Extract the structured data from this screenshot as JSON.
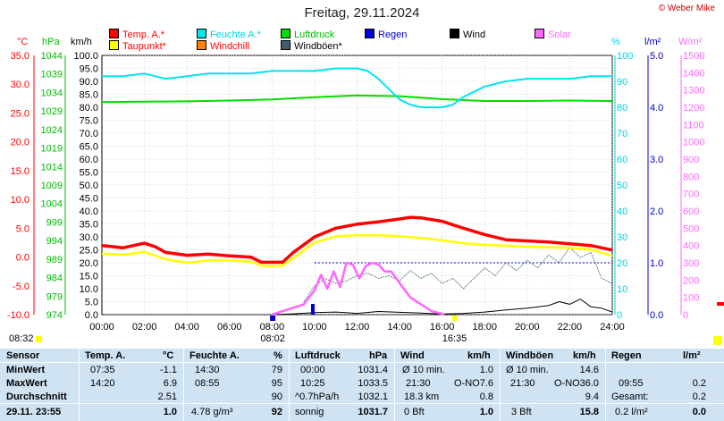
{
  "header": {
    "title": "Freitag, 29.11.2024",
    "copyright": "© Weber Mike"
  },
  "legend": [
    {
      "label": "Temp. A.*",
      "color": "#ff0000"
    },
    {
      "label": "Feuchte A.*",
      "color": "#00e5ee"
    },
    {
      "label": "Luftdruck",
      "color": "#00dd00"
    },
    {
      "label": "Regen",
      "color": "#0000dd"
    },
    {
      "label": "Wind",
      "color": "#000000"
    },
    {
      "label": "Solar",
      "color": "#ff66ff"
    },
    {
      "label": "Taupunkt*",
      "color": "#ffff00"
    },
    {
      "label": "Windchill",
      "color": "#ff8000"
    },
    {
      "label": "Windböen*",
      "color": "#406070"
    }
  ],
  "axis_units": {
    "temp": "°C",
    "hpa": "hPa",
    "kmh": "km/h",
    "hum": "%",
    "rain": "l/m²",
    "solar": "W/m²"
  },
  "chart_data": {
    "type": "line",
    "title": "Freitag, 29.11.2024",
    "x_ticks": [
      "00:00",
      "02:00",
      "04:00",
      "06:00",
      "08:00",
      "10:00",
      "12:00",
      "14:00",
      "16:00",
      "18:00",
      "20:00",
      "22:00",
      "24:00"
    ],
    "axes": {
      "temp_c": {
        "range": [
          -10,
          35
        ],
        "ticks": [
          "35.0",
          "30.0",
          "25.0",
          "20.0",
          "15.0",
          "10.0",
          "5.0",
          "0.0",
          "-5.0",
          "-10.0"
        ]
      },
      "pressure_hpa": {
        "range": [
          974,
          1044
        ],
        "ticks": [
          "1044",
          "1039",
          "1034",
          "1029",
          "1024",
          "1019",
          "1014",
          "1009",
          "1004",
          "999",
          "994",
          "989",
          "984",
          "979",
          "974"
        ]
      },
      "wind_kmh": {
        "range": [
          0,
          100
        ],
        "ticks": [
          "100.0",
          "95.0",
          "90.0",
          "85.0",
          "80.0",
          "75.0",
          "70.0",
          "65.0",
          "60.0",
          "55.0",
          "50.0",
          "45.0",
          "40.0",
          "35.0",
          "30.0",
          "25.0",
          "20.0",
          "15.0",
          "10.0",
          "5.0",
          "0.0"
        ]
      },
      "humidity_pct": {
        "range": [
          0,
          100
        ],
        "ticks": [
          "100",
          "90",
          "80",
          "70",
          "60",
          "50",
          "40",
          "30",
          "20",
          "10",
          "0"
        ]
      },
      "rain_lm2": {
        "range": [
          0,
          5
        ],
        "ticks": [
          "5.0",
          "4.0",
          "3.0",
          "2.0",
          "1.0",
          "0.0"
        ]
      },
      "solar_wm2": {
        "range": [
          0,
          1500
        ],
        "ticks": [
          "1500",
          "1400",
          "1300",
          "1200",
          "1100",
          "1000",
          "900",
          "800",
          "700",
          "600",
          "500",
          "400",
          "300",
          "200",
          "100",
          "0"
        ]
      }
    },
    "series": [
      {
        "name": "Temp. A.*",
        "axis": "temp_c",
        "hours": [
          0,
          1,
          2,
          2.5,
          3,
          4,
          5,
          6,
          7,
          7.5,
          8,
          8.5,
          9,
          10,
          11,
          12,
          13,
          14,
          14.5,
          15,
          16,
          17,
          18,
          19,
          20,
          21,
          22,
          23,
          24
        ],
        "values": [
          2.0,
          1.6,
          2.4,
          1.8,
          0.8,
          0.3,
          0.5,
          0.2,
          0.0,
          -0.9,
          -0.9,
          -0.9,
          0.8,
          3.5,
          5.0,
          5.7,
          6.1,
          6.6,
          6.9,
          6.8,
          6.2,
          5.0,
          3.9,
          3.0,
          2.8,
          2.6,
          2.3,
          2.0,
          1.2
        ]
      },
      {
        "name": "Taupunkt*",
        "axis": "temp_c",
        "hours": [
          0,
          1,
          2,
          3,
          4,
          5,
          6,
          7,
          7.5,
          8,
          8.5,
          9,
          10,
          11,
          12,
          13,
          14,
          15,
          16,
          17,
          18,
          19,
          20,
          21,
          22,
          23,
          24
        ],
        "values": [
          0.6,
          0.4,
          0.9,
          -0.4,
          -1.0,
          -0.6,
          -0.6,
          -0.8,
          -1.5,
          -1.5,
          -1.5,
          -0.2,
          2.5,
          3.6,
          3.8,
          3.8,
          3.6,
          3.3,
          2.9,
          2.4,
          2.1,
          2.0,
          1.8,
          1.7,
          1.6,
          1.3,
          0.2
        ]
      },
      {
        "name": "Feuchte A.*",
        "axis": "humidity_pct",
        "hours": [
          0,
          1,
          2,
          2.5,
          3,
          4,
          5,
          6,
          7,
          8,
          8.5,
          9,
          10,
          11,
          12,
          12.5,
          13,
          13.5,
          14,
          14.5,
          15,
          15.5,
          16,
          16.5,
          17,
          18,
          19,
          20,
          21,
          22,
          23,
          24
        ],
        "values": [
          92,
          92,
          93,
          92,
          91,
          92,
          93,
          93,
          93,
          94,
          94,
          94,
          94,
          95,
          95,
          94,
          91,
          87,
          83,
          81,
          80,
          80,
          80,
          81,
          84,
          88,
          90,
          91,
          91,
          91,
          92,
          92
        ]
      },
      {
        "name": "Luftdruck",
        "axis": "pressure_hpa",
        "hours": [
          0,
          2,
          4,
          6,
          8,
          10,
          12,
          14,
          16,
          18,
          20,
          22,
          24
        ],
        "values": [
          1031.4,
          1031.5,
          1031.6,
          1031.8,
          1032.1,
          1032.7,
          1033.2,
          1033.0,
          1032.2,
          1031.7,
          1031.7,
          1031.8,
          1031.7
        ]
      },
      {
        "name": "Solar",
        "axis": "solar_wm2",
        "hours": [
          8,
          8.5,
          9,
          9.5,
          10,
          10.3,
          10.6,
          10.9,
          11.2,
          11.5,
          11.8,
          12.1,
          12.4,
          12.7,
          13,
          13.3,
          13.6,
          13.9,
          14.2,
          14.5,
          15,
          15.5,
          16,
          16.1
        ],
        "values": [
          0,
          20,
          40,
          60,
          140,
          230,
          150,
          250,
          160,
          300,
          290,
          210,
          280,
          300,
          290,
          250,
          250,
          200,
          150,
          100,
          60,
          20,
          5,
          0
        ]
      },
      {
        "name": "Windböen*",
        "axis": "wind_kmh",
        "hours": [
          9.5,
          10,
          10.5,
          11,
          11.5,
          12,
          12.5,
          13,
          13.5,
          14,
          14.5,
          15,
          15.5,
          16,
          16.5,
          17,
          17.5,
          18,
          18.5,
          19,
          19.5,
          20,
          20.5,
          21,
          21.5,
          22,
          22.5,
          23,
          23.5,
          24
        ],
        "values": [
          5,
          11,
          14,
          12,
          13,
          15,
          16,
          14,
          15,
          13,
          17,
          14,
          16,
          12,
          14,
          10,
          14,
          18,
          15,
          20,
          17,
          21,
          18,
          23,
          20,
          26,
          22,
          24,
          14,
          12
        ]
      },
      {
        "name": "Wind",
        "axis": "wind_kmh",
        "hours": [
          8,
          9,
          10,
          11,
          12,
          13,
          14,
          15,
          16,
          17,
          18,
          19,
          20,
          21,
          21.5,
          22,
          22.5,
          23,
          23.5,
          24
        ],
        "values": [
          0,
          0.3,
          0.8,
          1.0,
          0.5,
          1.2,
          0.9,
          0.6,
          0.2,
          0.5,
          1.0,
          1.8,
          2.5,
          3.5,
          5.0,
          4.0,
          6.0,
          3.0,
          2.5,
          1.0
        ]
      }
    ],
    "markers": [
      {
        "time": "08:02",
        "label": "08:02"
      },
      {
        "time": "16:35",
        "label": "16:35"
      }
    ],
    "left_label": "08:32",
    "rain_total_lm2": 0.2
  },
  "stats_table": {
    "headers": {
      "sensor": "Sensor",
      "temp": "Temp. A.",
      "temp_unit": "°C",
      "hum": "Feuchte A.",
      "hum_unit": "%",
      "press": "Luftdruck",
      "press_unit": "hPa",
      "wind": "Wind",
      "wind_unit": "km/h",
      "gust": "Windböen",
      "gust_unit": "km/h",
      "rain": "Regen",
      "rain_unit": "l/m²"
    },
    "rows": {
      "min": {
        "label": "MinWert",
        "temp_time": "07:35",
        "temp_val": "-1.1",
        "hum_time": "14:30",
        "hum_val": "79",
        "press_time": "00:00",
        "press_val": "1031.4",
        "wind_time": "Ø 10 min.",
        "wind_val": "1.0",
        "gust_time": "Ø 10 min.",
        "gust_val": "14.6",
        "rain_time": "",
        "rain_val": ""
      },
      "max": {
        "label": "MaxWert",
        "temp_time": "14:20",
        "temp_val": "6.9",
        "hum_time": "08:55",
        "hum_val": "95",
        "press_time": "10:25",
        "press_val": "1033.5",
        "wind_time": "21:30",
        "wind_dir": "O-NO",
        "wind_val": "7.6",
        "gust_time": "21:30",
        "gust_dir": "O-NO",
        "gust_val": "36.0",
        "rain_time": "09:55",
        "rain_val": "0.2"
      },
      "avg": {
        "label": "Durchschnitt",
        "temp_val": "2.51",
        "hum_val": "90",
        "press_time": "^0.7hPa/h",
        "press_val": "1032.1",
        "wind_time": "18.3 km",
        "wind_val": "0.8",
        "gust_val": "9.4",
        "rain_time": "Gesamt:",
        "rain_val": "0.2"
      },
      "current": {
        "label": "29.11. 23:55",
        "temp_val": "1.0",
        "hum_time": "4.78 g/m³",
        "hum_val": "92",
        "press_time": "sonnig",
        "press_val": "1031.7",
        "wind_time": "0 Bft",
        "wind_val": "1.0",
        "gust_time": "3 Bft",
        "gust_val": "15.8",
        "rain_time": "0.2 l/m²",
        "rain_val": "0.0"
      }
    }
  }
}
